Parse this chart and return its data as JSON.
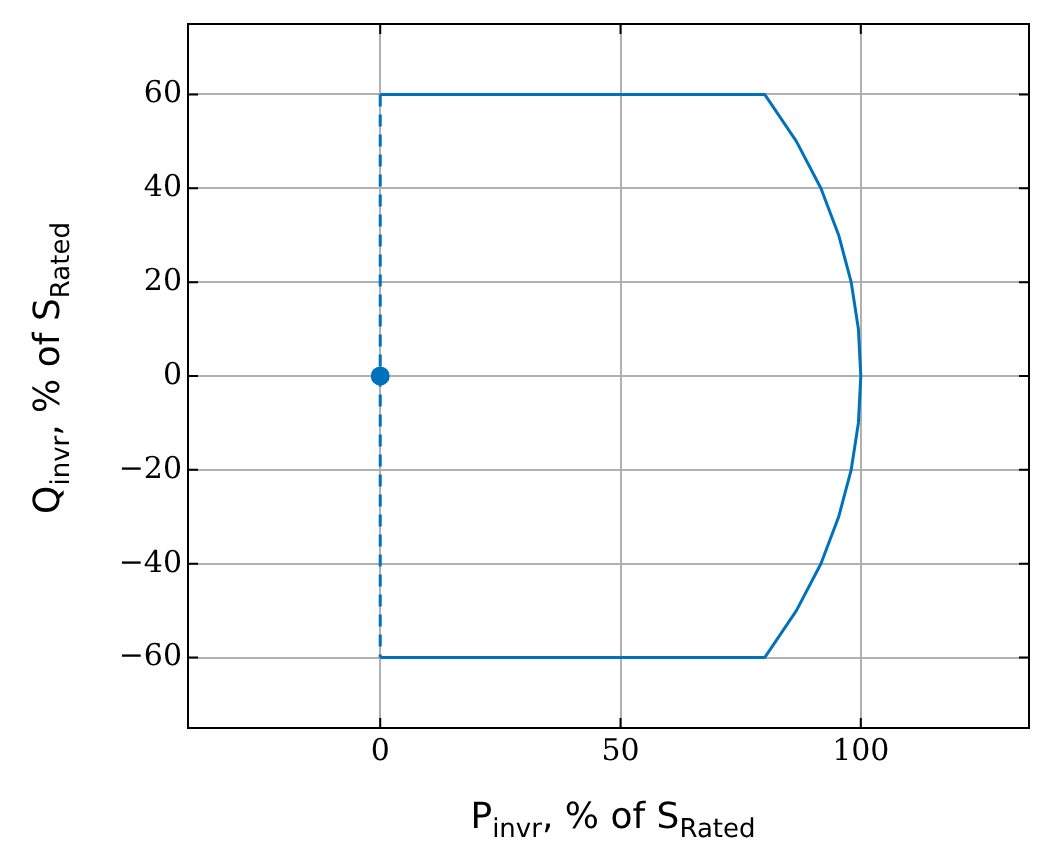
{
  "chart_data": {
    "type": "line",
    "xlabel": "P$_{invr}$, % of S$_{Rated}$",
    "ylabel": "Q$_{invr}$, % of S$_{Rated}$",
    "xlim": [
      -40,
      135
    ],
    "ylim": [
      -75,
      75
    ],
    "xticks": [
      0,
      50,
      100
    ],
    "yticks": [
      -60,
      -40,
      -20,
      0,
      20,
      40,
      60
    ],
    "grid": true,
    "legend": false,
    "series": [
      {
        "color": "#0072bd",
        "marker": "none",
        "line_style": "solid",
        "x": [
          0,
          80,
          86.6,
          91.7,
          95.4,
          98,
          99.5,
          100,
          99.5,
          98,
          95.4,
          91.7,
          86.6,
          80,
          0
        ],
        "values": [
          60,
          60,
          50,
          40,
          30,
          20,
          10,
          0,
          -10,
          -20,
          -30,
          -40,
          -50,
          -60,
          -60
        ]
      },
      {
        "color": "#0072bd",
        "marker": "none",
        "line_style": "dashed",
        "x": [
          0,
          0
        ],
        "values": [
          60,
          -60
        ]
      },
      {
        "type": "scatter",
        "color": "#0072bd",
        "marker": "circle",
        "x": [
          0
        ],
        "values": [
          0
        ]
      }
    ]
  }
}
